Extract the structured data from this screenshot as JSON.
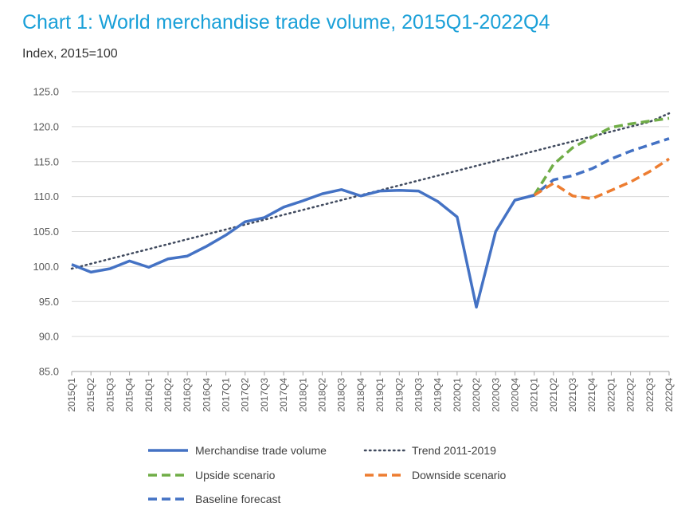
{
  "chart_data": {
    "type": "line",
    "title": "Chart 1: World merchandise trade volume, 2015Q1-2022Q4",
    "subtitle": "Index, 2015=100",
    "ylim": [
      85,
      125
    ],
    "yticks": [
      "85.0",
      "90.0",
      "95.0",
      "100.0",
      "105.0",
      "110.0",
      "115.0",
      "120.0",
      "125.0"
    ],
    "grid": true,
    "legend_position": "bottom",
    "x": [
      "2015Q1",
      "2015Q2",
      "2015Q3",
      "2015Q4",
      "2016Q1",
      "2016Q2",
      "2016Q3",
      "2016Q4",
      "2017Q1",
      "2017Q2",
      "2017Q3",
      "2017Q4",
      "2018Q1",
      "2018Q2",
      "2018Q3",
      "2018Q4",
      "2019Q1",
      "2019Q2",
      "2019Q3",
      "2019Q4",
      "2020Q1",
      "2020Q2",
      "2020Q3",
      "2020Q4",
      "2021Q1",
      "2021Q2",
      "2021Q3",
      "2021Q4",
      "2022Q1",
      "2022Q2",
      "2022Q3",
      "2022Q4"
    ],
    "series": [
      {
        "name": "Merchandise trade volume",
        "color": "#4472c4",
        "style": "solid",
        "values": [
          100.3,
          99.2,
          99.7,
          100.8,
          99.9,
          101.1,
          101.5,
          102.9,
          104.5,
          106.4,
          107.0,
          108.5,
          109.4,
          110.4,
          111.0,
          110.1,
          110.8,
          110.9,
          110.8,
          109.3,
          107.1,
          94.2,
          105.0,
          109.5,
          110.2,
          null,
          null,
          null,
          null,
          null,
          null,
          null
        ]
      },
      {
        "name": "Trend 2011-2019",
        "color": "#404a5e",
        "style": "dotted",
        "values": [
          99.7,
          100.4,
          101.1,
          101.8,
          102.5,
          103.2,
          103.9,
          104.6,
          105.3,
          106.0,
          106.7,
          107.4,
          108.1,
          108.8,
          109.5,
          110.2,
          110.9,
          111.6,
          112.3,
          113.0,
          113.7,
          114.4,
          115.1,
          115.8,
          116.5,
          117.2,
          117.9,
          118.6,
          119.3,
          120.0,
          120.7,
          121.9
        ]
      },
      {
        "name": "Upside scenario",
        "color": "#70ad47",
        "style": "dashed",
        "values": [
          null,
          null,
          null,
          null,
          null,
          null,
          null,
          null,
          null,
          null,
          null,
          null,
          null,
          null,
          null,
          null,
          null,
          null,
          null,
          null,
          null,
          null,
          null,
          null,
          110.2,
          114.6,
          117.0,
          118.5,
          119.9,
          120.4,
          120.8,
          121.2
        ]
      },
      {
        "name": "Downside scenario",
        "color": "#ed7d31",
        "style": "dashed",
        "values": [
          null,
          null,
          null,
          null,
          null,
          null,
          null,
          null,
          null,
          null,
          null,
          null,
          null,
          null,
          null,
          null,
          null,
          null,
          null,
          null,
          null,
          null,
          null,
          null,
          110.2,
          111.9,
          110.1,
          109.7,
          110.9,
          112.1,
          113.6,
          115.4
        ]
      },
      {
        "name": "Baseline forecast",
        "color": "#4472c4",
        "style": "dashed",
        "values": [
          null,
          null,
          null,
          null,
          null,
          null,
          null,
          null,
          null,
          null,
          null,
          null,
          null,
          null,
          null,
          null,
          null,
          null,
          null,
          null,
          null,
          null,
          null,
          109.5,
          110.2,
          112.4,
          113.0,
          114.0,
          115.4,
          116.5,
          117.4,
          118.3
        ]
      }
    ]
  }
}
